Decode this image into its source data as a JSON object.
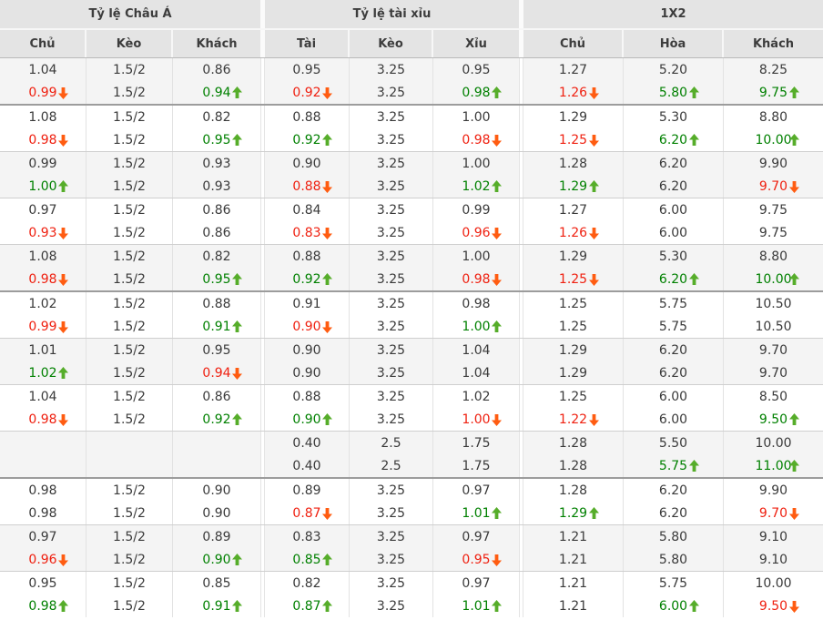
{
  "table": {
    "colors": {
      "up_text": "#008000",
      "down_text": "#ef2010",
      "up_arrow": "#56ad2a",
      "down_arrow": "#ff5c11",
      "header_bg": "#e4e4e4",
      "zebra_bg": "#f4f4f4"
    },
    "groups": [
      {
        "label": "Tỷ lệ Châu Á",
        "columns": [
          "Chủ",
          "Kèo",
          "Khách"
        ]
      },
      {
        "label": "Tỷ lệ tài xỉu",
        "columns": [
          "Tài",
          "Kèo",
          "Xỉu"
        ]
      },
      {
        "label": "1X2",
        "columns": [
          "Chủ",
          "Hòa",
          "Khách"
        ]
      }
    ],
    "rows": [
      {
        "zebra": true,
        "thick": true,
        "lines": [
          [
            [
              "1.04"
            ],
            [
              "1.5/2"
            ],
            [
              "0.86"
            ],
            [
              "0.95"
            ],
            [
              "3.25"
            ],
            [
              "0.95"
            ],
            [
              "1.27"
            ],
            [
              "5.20"
            ],
            [
              "8.25"
            ]
          ],
          [
            [
              "0.99",
              "down"
            ],
            [
              "1.5/2"
            ],
            [
              "0.94",
              "up"
            ],
            [
              "0.92",
              "down"
            ],
            [
              "3.25"
            ],
            [
              "0.98",
              "up"
            ],
            [
              "1.26",
              "down"
            ],
            [
              "5.80",
              "up"
            ],
            [
              "9.75",
              "up"
            ]
          ]
        ]
      },
      {
        "zebra": false,
        "thick": false,
        "lines": [
          [
            [
              "1.08"
            ],
            [
              "1.5/2"
            ],
            [
              "0.82"
            ],
            [
              "0.88"
            ],
            [
              "3.25"
            ],
            [
              "1.00"
            ],
            [
              "1.29"
            ],
            [
              "5.30"
            ],
            [
              "8.80"
            ]
          ],
          [
            [
              "0.98",
              "down"
            ],
            [
              "1.5/2"
            ],
            [
              "0.95",
              "up"
            ],
            [
              "0.92",
              "up"
            ],
            [
              "3.25"
            ],
            [
              "0.98",
              "down"
            ],
            [
              "1.25",
              "down"
            ],
            [
              "6.20",
              "up"
            ],
            [
              "10.00",
              "up"
            ]
          ]
        ]
      },
      {
        "zebra": true,
        "thick": false,
        "lines": [
          [
            [
              "0.99"
            ],
            [
              "1.5/2"
            ],
            [
              "0.93"
            ],
            [
              "0.90"
            ],
            [
              "3.25"
            ],
            [
              "1.00"
            ],
            [
              "1.28"
            ],
            [
              "6.20"
            ],
            [
              "9.90"
            ]
          ],
          [
            [
              "1.00",
              "up"
            ],
            [
              "1.5/2"
            ],
            [
              "0.93"
            ],
            [
              "0.88",
              "down"
            ],
            [
              "3.25"
            ],
            [
              "1.02",
              "up"
            ],
            [
              "1.29",
              "up"
            ],
            [
              "6.20"
            ],
            [
              "9.70",
              "down"
            ]
          ]
        ]
      },
      {
        "zebra": false,
        "thick": false,
        "lines": [
          [
            [
              "0.97"
            ],
            [
              "1.5/2"
            ],
            [
              "0.86"
            ],
            [
              "0.84"
            ],
            [
              "3.25"
            ],
            [
              "0.99"
            ],
            [
              "1.27"
            ],
            [
              "6.00"
            ],
            [
              "9.75"
            ]
          ],
          [
            [
              "0.93",
              "down"
            ],
            [
              "1.5/2"
            ],
            [
              "0.86"
            ],
            [
              "0.83",
              "down"
            ],
            [
              "3.25"
            ],
            [
              "0.96",
              "down"
            ],
            [
              "1.26",
              "down"
            ],
            [
              "6.00"
            ],
            [
              "9.75"
            ]
          ]
        ]
      },
      {
        "zebra": true,
        "thick": true,
        "lines": [
          [
            [
              "1.08"
            ],
            [
              "1.5/2"
            ],
            [
              "0.82"
            ],
            [
              "0.88"
            ],
            [
              "3.25"
            ],
            [
              "1.00"
            ],
            [
              "1.29"
            ],
            [
              "5.30"
            ],
            [
              "8.80"
            ]
          ],
          [
            [
              "0.98",
              "down"
            ],
            [
              "1.5/2"
            ],
            [
              "0.95",
              "up"
            ],
            [
              "0.92",
              "up"
            ],
            [
              "3.25"
            ],
            [
              "0.98",
              "down"
            ],
            [
              "1.25",
              "down"
            ],
            [
              "6.20",
              "up"
            ],
            [
              "10.00",
              "up"
            ]
          ]
        ]
      },
      {
        "zebra": false,
        "thick": false,
        "lines": [
          [
            [
              "1.02"
            ],
            [
              "1.5/2"
            ],
            [
              "0.88"
            ],
            [
              "0.91"
            ],
            [
              "3.25"
            ],
            [
              "0.98"
            ],
            [
              "1.25"
            ],
            [
              "5.75"
            ],
            [
              "10.50"
            ]
          ],
          [
            [
              "0.99",
              "down"
            ],
            [
              "1.5/2"
            ],
            [
              "0.91",
              "up"
            ],
            [
              "0.90",
              "down"
            ],
            [
              "3.25"
            ],
            [
              "1.00",
              "up"
            ],
            [
              "1.25"
            ],
            [
              "5.75"
            ],
            [
              "10.50"
            ]
          ]
        ]
      },
      {
        "zebra": true,
        "thick": false,
        "lines": [
          [
            [
              "1.01"
            ],
            [
              "1.5/2"
            ],
            [
              "0.95"
            ],
            [
              "0.90"
            ],
            [
              "3.25"
            ],
            [
              "1.04"
            ],
            [
              "1.29"
            ],
            [
              "6.20"
            ],
            [
              "9.70"
            ]
          ],
          [
            [
              "1.02",
              "up"
            ],
            [
              "1.5/2"
            ],
            [
              "0.94",
              "down"
            ],
            [
              "0.90"
            ],
            [
              "3.25"
            ],
            [
              "1.04"
            ],
            [
              "1.29"
            ],
            [
              "6.20"
            ],
            [
              "9.70"
            ]
          ]
        ]
      },
      {
        "zebra": false,
        "thick": false,
        "lines": [
          [
            [
              "1.04"
            ],
            [
              "1.5/2"
            ],
            [
              "0.86"
            ],
            [
              "0.88"
            ],
            [
              "3.25"
            ],
            [
              "1.02"
            ],
            [
              "1.25"
            ],
            [
              "6.00"
            ],
            [
              "8.50"
            ]
          ],
          [
            [
              "0.98",
              "down"
            ],
            [
              "1.5/2"
            ],
            [
              "0.92",
              "up"
            ],
            [
              "0.90",
              "up"
            ],
            [
              "3.25"
            ],
            [
              "1.00",
              "down"
            ],
            [
              "1.22",
              "down"
            ],
            [
              "6.00"
            ],
            [
              "9.50",
              "up"
            ]
          ]
        ]
      },
      {
        "zebra": true,
        "thick": true,
        "lines": [
          [
            [
              ""
            ],
            [
              ""
            ],
            [
              ""
            ],
            [
              "0.40"
            ],
            [
              "2.5"
            ],
            [
              "1.75"
            ],
            [
              "1.28"
            ],
            [
              "5.50"
            ],
            [
              "10.00"
            ]
          ],
          [
            [
              ""
            ],
            [
              ""
            ],
            [
              ""
            ],
            [
              "0.40"
            ],
            [
              "2.5"
            ],
            [
              "1.75"
            ],
            [
              "1.28"
            ],
            [
              "5.75",
              "up"
            ],
            [
              "11.00",
              "up"
            ]
          ]
        ]
      },
      {
        "zebra": false,
        "thick": false,
        "lines": [
          [
            [
              "0.98"
            ],
            [
              "1.5/2"
            ],
            [
              "0.90"
            ],
            [
              "0.89"
            ],
            [
              "3.25"
            ],
            [
              "0.97"
            ],
            [
              "1.28"
            ],
            [
              "6.20"
            ],
            [
              "9.90"
            ]
          ],
          [
            [
              "0.98"
            ],
            [
              "1.5/2"
            ],
            [
              "0.90"
            ],
            [
              "0.87",
              "down"
            ],
            [
              "3.25"
            ],
            [
              "1.01",
              "up"
            ],
            [
              "1.29",
              "up"
            ],
            [
              "6.20"
            ],
            [
              "9.70",
              "down"
            ]
          ]
        ]
      },
      {
        "zebra": true,
        "thick": false,
        "lines": [
          [
            [
              "0.97"
            ],
            [
              "1.5/2"
            ],
            [
              "0.89"
            ],
            [
              "0.83"
            ],
            [
              "3.25"
            ],
            [
              "0.97"
            ],
            [
              "1.21"
            ],
            [
              "5.80"
            ],
            [
              "9.10"
            ]
          ],
          [
            [
              "0.96",
              "down"
            ],
            [
              "1.5/2"
            ],
            [
              "0.90",
              "up"
            ],
            [
              "0.85",
              "up"
            ],
            [
              "3.25"
            ],
            [
              "0.95",
              "down"
            ],
            [
              "1.21"
            ],
            [
              "5.80"
            ],
            [
              "9.10"
            ]
          ]
        ]
      },
      {
        "zebra": false,
        "thick": false,
        "lines": [
          [
            [
              "0.95"
            ],
            [
              "1.5/2"
            ],
            [
              "0.85"
            ],
            [
              "0.82"
            ],
            [
              "3.25"
            ],
            [
              "0.97"
            ],
            [
              "1.21"
            ],
            [
              "5.75"
            ],
            [
              "10.00"
            ]
          ],
          [
            [
              "0.98",
              "up"
            ],
            [
              "1.5/2"
            ],
            [
              "0.91",
              "up"
            ],
            [
              "0.87",
              "up"
            ],
            [
              "3.25"
            ],
            [
              "1.01",
              "up"
            ],
            [
              "1.21"
            ],
            [
              "6.00",
              "up"
            ],
            [
              "9.50",
              "down"
            ]
          ]
        ]
      }
    ]
  }
}
